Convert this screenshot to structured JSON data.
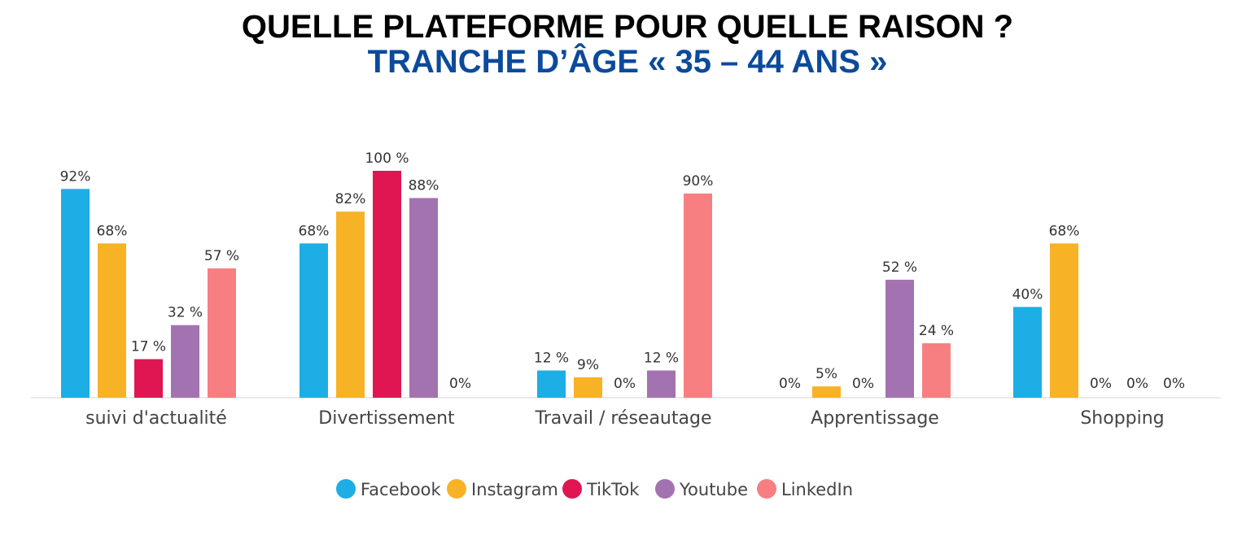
{
  "header": {
    "title": "QUELLE PLATEFORME POUR QUELLE RAISON ?",
    "subtitle": "TRANCHE D’ÂGE « 35 – 44 ANS »"
  },
  "chart_data": {
    "type": "bar",
    "title": "QUELLE PLATEFORME POUR QUELLE RAISON ?",
    "subtitle": "TRANCHE D’ÂGE « 35 – 44 ANS »",
    "xlabel": "",
    "ylabel": "",
    "ylim": [
      0,
      100
    ],
    "grid": false,
    "legend_position": "bottom",
    "categories": [
      "suivi d'actualité",
      "Divertissement",
      "Travail / réseautage",
      "Apprentissage",
      "Shopping"
    ],
    "series": [
      {
        "name": "Facebook",
        "color": "#1caee4",
        "values": [
          92,
          68,
          12,
          0,
          40
        ],
        "labels": [
          "92%",
          "68%",
          "12 %",
          "0%",
          "40%"
        ]
      },
      {
        "name": "Instagram",
        "color": "#f7b325",
        "values": [
          68,
          82,
          9,
          5,
          68
        ],
        "labels": [
          "68%",
          "82%",
          "9%",
          "5%",
          "68%"
        ]
      },
      {
        "name": "TikTok",
        "color": "#e01653",
        "values": [
          17,
          100,
          0,
          0,
          0
        ],
        "labels": [
          "17 %",
          "100 %",
          "0%",
          "0%",
          "0%"
        ]
      },
      {
        "name": "Youtube",
        "color": "#a273b0",
        "values": [
          32,
          88,
          12,
          52,
          0
        ],
        "labels": [
          "32 %",
          "88%",
          "12 %",
          "52 %",
          "0%"
        ]
      },
      {
        "name": "LinkedIn",
        "color": "#f77f82",
        "values": [
          57,
          0,
          90,
          24,
          0
        ],
        "labels": [
          "57 %",
          "0%",
          "90%",
          "24 %",
          "0%"
        ]
      }
    ]
  }
}
